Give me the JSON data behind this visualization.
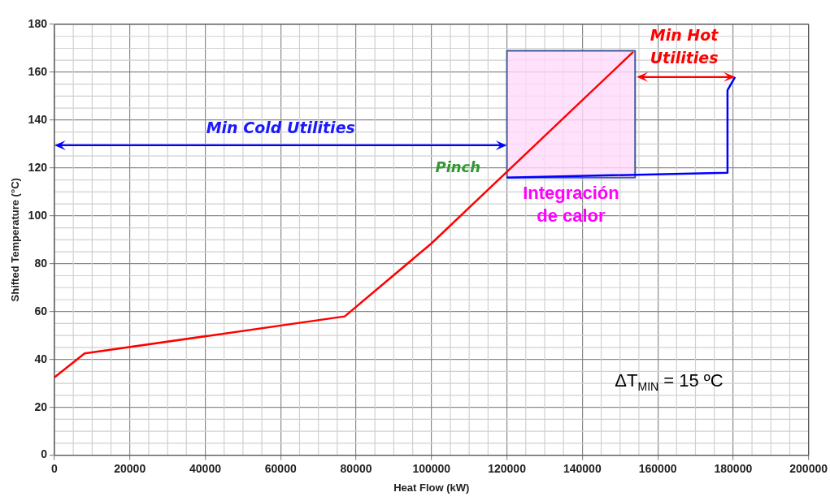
{
  "chart_data": {
    "type": "line",
    "xlabel": "Heat Flow (kW)",
    "ylabel": "Shifted Temperature (°C)",
    "xlim": [
      0,
      200000
    ],
    "xticks": [
      0,
      20000,
      40000,
      60000,
      80000,
      100000,
      120000,
      140000,
      160000,
      180000,
      200000
    ],
    "ylim": [
      0,
      180
    ],
    "yticks": [
      0,
      20,
      40,
      60,
      80,
      100,
      120,
      140,
      160,
      180
    ],
    "grid": true,
    "legend": false,
    "marker": "none",
    "series": [
      {
        "type": "area",
        "color": "#ffd9fb",
        "x": [
          120000,
          154000,
          154000,
          120000,
          120000
        ],
        "values": [
          116,
          116,
          169,
          169,
          116
        ]
      },
      {
        "color": "#ff0000",
        "x": [
          0,
          8000,
          77000,
          100000,
          153500
        ],
        "values": [
          32.5,
          42.5,
          58,
          88.5,
          168.5
        ]
      },
      {
        "color": "#0000ff",
        "x": [
          120000,
          178500,
          178500,
          180500
        ],
        "values": [
          116,
          118,
          152.5,
          158
        ]
      }
    ],
    "annotations": [
      "Min Cold Utilities",
      "Min Hot Utilities",
      "Pinch",
      "Integración de calor",
      "ΔT$_{MIN}$ = 15 ºC"
    ]
  }
}
